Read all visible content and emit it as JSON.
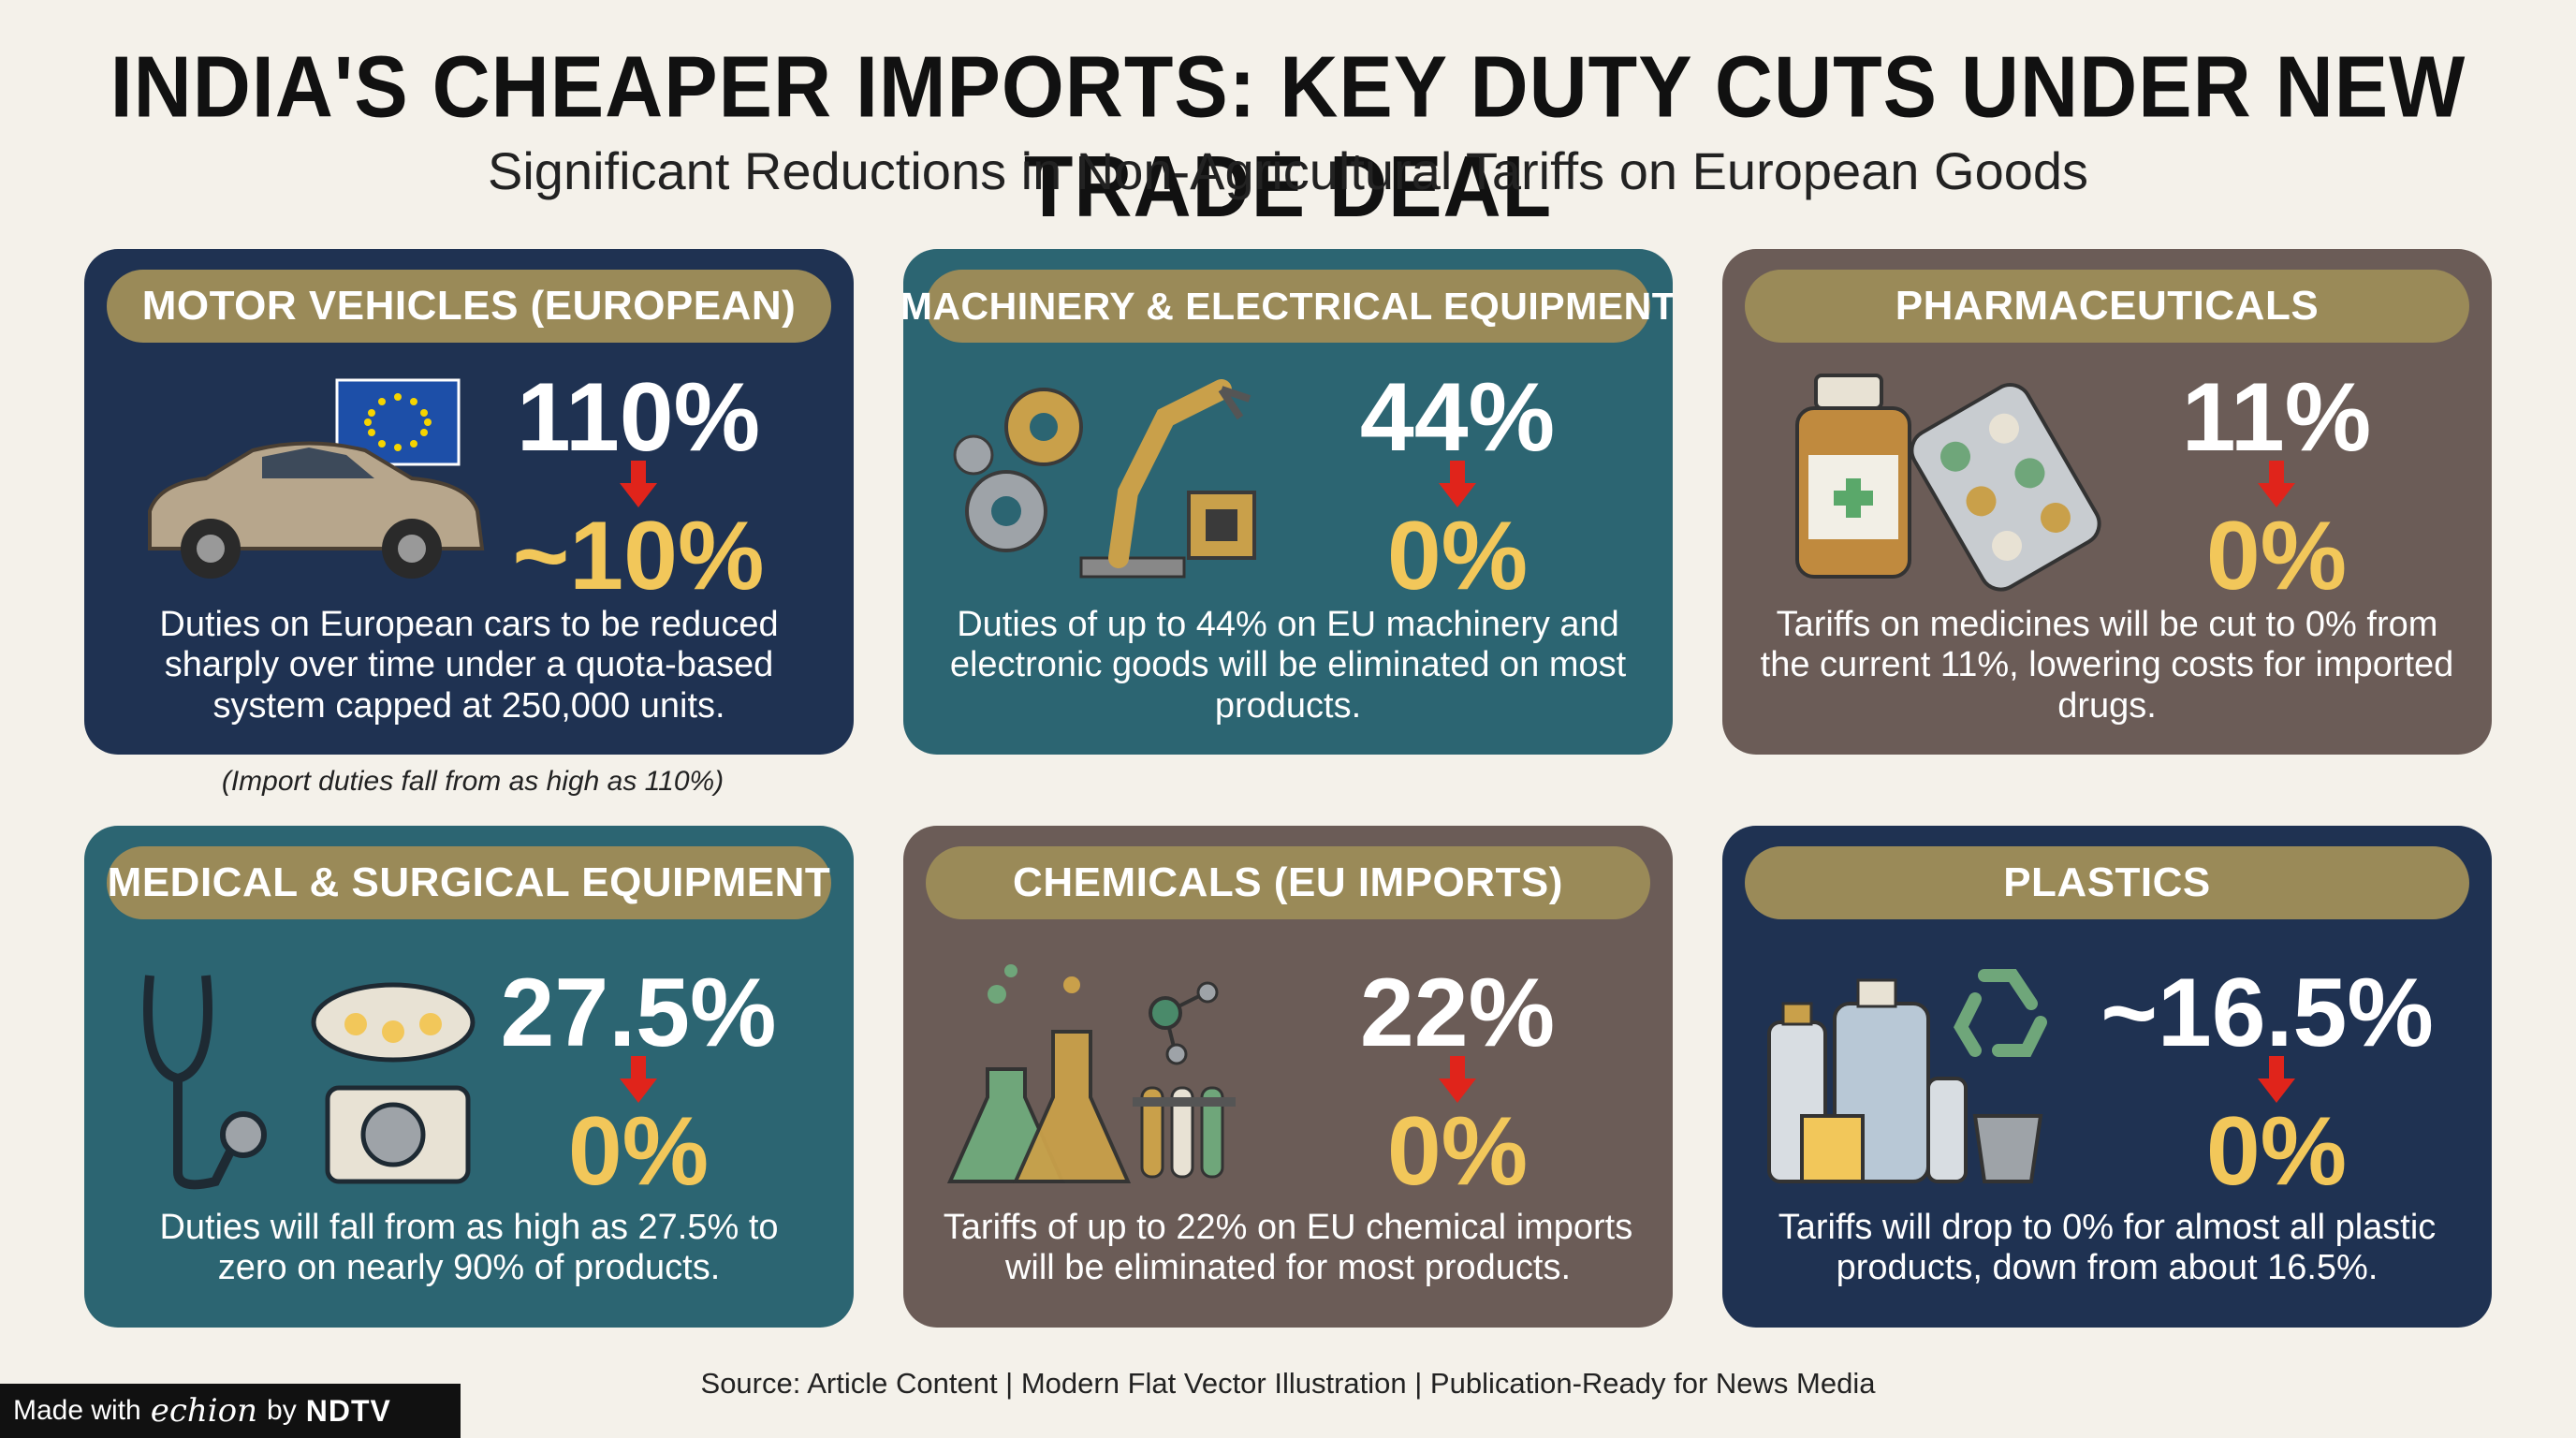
{
  "title": "INDIA'S CHEAPER IMPORTS: KEY DUTY CUTS UNDER NEW TRADE DEAL",
  "subtitle": "Significant Reductions in Non-Agricultural Tariffs on European Goods",
  "cards": [
    {
      "label": "MOTOR VEHICLES (EUROPEAN)",
      "from": "110%",
      "to": "~10%",
      "icon": "car-eu-flag-icon",
      "description": "Duties on European cars to be reduced sharply over time under a quota-based system capped at 250,000 units.",
      "note": "(Import duties fall from as high as 110%)"
    },
    {
      "label": "MACHINERY & ELECTRICAL EQUIPMENT",
      "from": "44%",
      "to": "0%",
      "icon": "gears-robot-arm-icon",
      "description": "Duties of up to 44% on EU machinery and electronic goods will be eliminated on most products."
    },
    {
      "label": "PHARMACEUTICALS",
      "from": "11%",
      "to": "0%",
      "icon": "medicine-bottle-pills-icon",
      "description": "Tariffs on medicines will be cut to 0% from the current 11%, lowering costs for imported drugs."
    },
    {
      "label": "MEDICAL & SURGICAL EQUIPMENT",
      "from": "27.5%",
      "to": "0%",
      "icon": "stethoscope-surgical-light-icon",
      "description": "Duties will fall from as high as 27.5% to zero on nearly 90% of products."
    },
    {
      "label": "CHEMICALS (EU IMPORTS)",
      "from": "22%",
      "to": "0%",
      "icon": "lab-flasks-icon",
      "description": "Tariffs of up to 22% on EU chemical imports will be eliminated for most products."
    },
    {
      "label": "PLASTICS",
      "from": "~16.5%",
      "to": "0%",
      "icon": "plastic-bottles-recycle-icon",
      "description": "Tariffs will drop to 0% for almost all plastic products, down from about 16.5%."
    }
  ],
  "source": "Source: Article Content | Modern Flat Vector Illustration | Publication-Ready for News Media",
  "badge": {
    "prefix": "Made with",
    "brand": "echion",
    "by": "by",
    "partner": "NDTV"
  },
  "colors": {
    "navy": "#1f3252",
    "teal": "#2c6572",
    "brown": "#6b5c57",
    "pill": "#9a8a58",
    "accent": "#f2c75a",
    "arrow": "#e0241b"
  }
}
